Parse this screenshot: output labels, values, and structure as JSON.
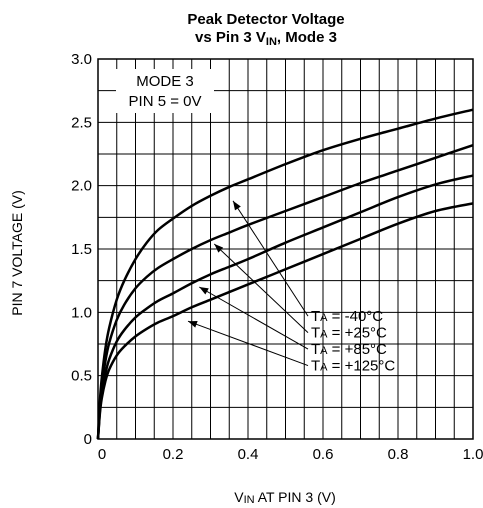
{
  "chart_data": {
    "type": "line",
    "title_line1": "Peak Detector Voltage",
    "title_line2_main": "vs Pin 3 V",
    "title_line2_sub": "IN",
    "title_line2_tail": ", Mode 3",
    "xlabel_main": "V",
    "xlabel_sub": "IN",
    "xlabel_tail": " AT PIN 3 (V)",
    "ylabel": "PIN 7 VOLTAGE (V)",
    "xlim": [
      0,
      1.0
    ],
    "ylim": [
      0,
      3.0
    ],
    "x_ticks": [
      0,
      0.2,
      0.4,
      0.6,
      0.8,
      1.0
    ],
    "x_tick_labels": [
      "0",
      "0.2",
      "0.4",
      "0.6",
      "0.8",
      "1.0"
    ],
    "y_ticks": [
      0,
      0.5,
      1.0,
      1.5,
      2.0,
      2.5,
      3.0
    ],
    "y_tick_labels": [
      "0",
      "0.5",
      "1.0",
      "1.5",
      "2.0",
      "2.5",
      "3.0"
    ],
    "grid": true,
    "annotation_line1": "MODE 3",
    "annotation_line2": "PIN 5 = 0V",
    "series": [
      {
        "label_prefix": "T",
        "label_sub": "A",
        "label_value": " = -40°C",
        "x": [
          0,
          0.005,
          0.01,
          0.02,
          0.03,
          0.05,
          0.07,
          0.1,
          0.13,
          0.16,
          0.2,
          0.25,
          0.3,
          0.35,
          0.4,
          0.5,
          0.6,
          0.7,
          0.8,
          0.9,
          1.0
        ],
        "y": [
          0,
          0.3,
          0.48,
          0.72,
          0.88,
          1.1,
          1.25,
          1.42,
          1.55,
          1.65,
          1.74,
          1.84,
          1.92,
          1.99,
          2.05,
          2.17,
          2.28,
          2.37,
          2.45,
          2.53,
          2.6
        ]
      },
      {
        "label_prefix": "T",
        "label_sub": "A",
        "label_value": " = +25°C",
        "x": [
          0,
          0.005,
          0.01,
          0.02,
          0.03,
          0.05,
          0.07,
          0.1,
          0.13,
          0.16,
          0.2,
          0.25,
          0.3,
          0.35,
          0.4,
          0.5,
          0.6,
          0.7,
          0.8,
          0.9,
          1.0
        ],
        "y": [
          0,
          0.25,
          0.42,
          0.62,
          0.76,
          0.94,
          1.06,
          1.19,
          1.28,
          1.35,
          1.42,
          1.5,
          1.57,
          1.63,
          1.69,
          1.8,
          1.91,
          2.02,
          2.12,
          2.22,
          2.32
        ]
      },
      {
        "label_prefix": "T",
        "label_sub": "A",
        "label_value": " = +85°C",
        "x": [
          0,
          0.005,
          0.01,
          0.02,
          0.03,
          0.05,
          0.07,
          0.1,
          0.13,
          0.16,
          0.2,
          0.25,
          0.3,
          0.35,
          0.4,
          0.5,
          0.6,
          0.7,
          0.8,
          0.9,
          1.0
        ],
        "y": [
          0,
          0.22,
          0.36,
          0.52,
          0.63,
          0.77,
          0.86,
          0.96,
          1.03,
          1.09,
          1.15,
          1.23,
          1.3,
          1.36,
          1.42,
          1.55,
          1.67,
          1.79,
          1.91,
          2.01,
          2.08
        ]
      },
      {
        "label_prefix": "T",
        "label_sub": "A",
        "label_value": " = +125°C",
        "x": [
          0,
          0.005,
          0.01,
          0.02,
          0.03,
          0.05,
          0.07,
          0.1,
          0.13,
          0.16,
          0.2,
          0.25,
          0.3,
          0.35,
          0.4,
          0.5,
          0.6,
          0.7,
          0.8,
          0.9,
          1.0
        ],
        "y": [
          0,
          0.2,
          0.32,
          0.46,
          0.55,
          0.66,
          0.73,
          0.81,
          0.87,
          0.92,
          0.97,
          1.04,
          1.1,
          1.16,
          1.22,
          1.34,
          1.46,
          1.58,
          1.7,
          1.8,
          1.86
        ]
      }
    ],
    "arrows": [
      {
        "from": [
          0.56,
          0.97
        ],
        "to": [
          0.36,
          1.88
        ]
      },
      {
        "from": [
          0.56,
          0.84
        ],
        "to": [
          0.31,
          1.54
        ]
      },
      {
        "from": [
          0.56,
          0.71
        ],
        "to": [
          0.27,
          1.2
        ]
      },
      {
        "from": [
          0.56,
          0.58
        ],
        "to": [
          0.24,
          0.93
        ]
      }
    ]
  }
}
